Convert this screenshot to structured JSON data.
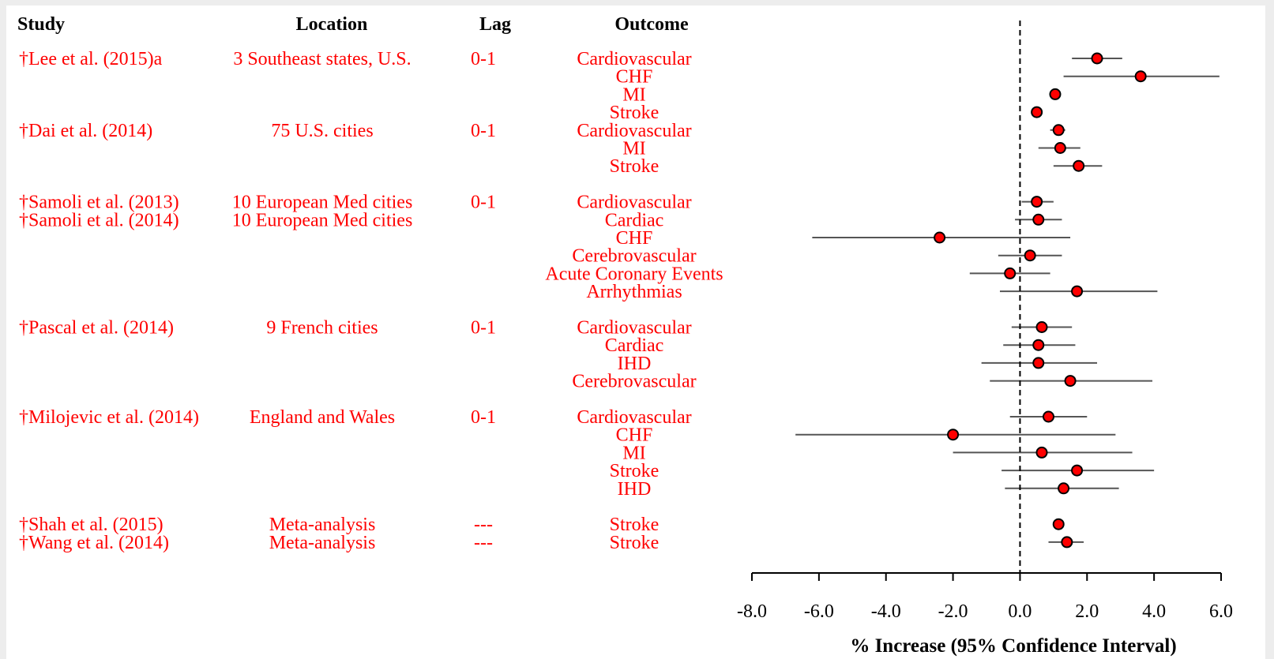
{
  "table": {
    "headers": {
      "study": "Study",
      "location": "Location",
      "lag": "Lag",
      "outcome": "Outcome"
    },
    "studies": [
      {
        "study": "†Lee et al. (2015)a",
        "location": "3 Southeast states, U.S.",
        "lag": "0-1",
        "row": 0
      },
      {
        "study": "†Dai et al. (2014)",
        "location": "75 U.S. cities",
        "lag": "0-1",
        "row": 4
      },
      {
        "study": "†Samoli et al. (2013)",
        "location": "10 European Med cities",
        "lag": "0-1",
        "row": 8
      },
      {
        "study": "†Samoli et al. (2014)",
        "location": "10 European Med cities",
        "lag": "",
        "row": 9
      },
      {
        "study": "†Pascal et al. (2014)",
        "location": "9 French cities",
        "lag": "0-1",
        "row": 15
      },
      {
        "study": "†Milojevic et al. (2014)",
        "location": "England and Wales",
        "lag": "0-1",
        "row": 20
      },
      {
        "study": "†Shah et al. (2015)",
        "location": "Meta-analysis",
        "lag": "---",
        "row": 26
      },
      {
        "study": "†Wang et al. (2014)",
        "location": "Meta-analysis",
        "lag": "---",
        "row": 27
      }
    ]
  },
  "chart_data": {
    "type": "forest",
    "xlabel": "% Increase (95% Confidence Interval)",
    "xlim": [
      -8.0,
      6.0
    ],
    "xticks": [
      "-8.0",
      "-6.0",
      "-4.0",
      "-2.0",
      "0.0",
      "2.0",
      "4.0",
      "6.0"
    ],
    "xtick_values": [
      -8,
      -6,
      -4,
      -2,
      0,
      2,
      4,
      6
    ],
    "reference_line": 0,
    "colors": {
      "text": "#ff0000",
      "marker_fill": "#ff0000",
      "ci_line": "#555555",
      "axis": "#000000"
    },
    "rows": [
      {
        "row": 0,
        "outcome": "Cardiovascular",
        "est": 2.3,
        "lo": 1.55,
        "hi": 3.05
      },
      {
        "row": 1,
        "outcome": "CHF",
        "est": 3.6,
        "lo": 1.3,
        "hi": 5.95
      },
      {
        "row": 2,
        "outcome": "MI",
        "est": 1.05,
        "lo": 0.95,
        "hi": 1.15
      },
      {
        "row": 3,
        "outcome": "Stroke",
        "est": 0.5,
        "lo": 0.4,
        "hi": 0.6
      },
      {
        "row": 4,
        "outcome": "Cardiovascular",
        "est": 1.15,
        "lo": 0.9,
        "hi": 1.35
      },
      {
        "row": 5,
        "outcome": "MI",
        "est": 1.2,
        "lo": 0.55,
        "hi": 1.8
      },
      {
        "row": 6,
        "outcome": "Stroke",
        "est": 1.75,
        "lo": 1.0,
        "hi": 2.45
      },
      {
        "row": 8,
        "outcome": "Cardiovascular",
        "est": 0.5,
        "lo": 0.05,
        "hi": 1.0
      },
      {
        "row": 9,
        "outcome": "Cardiac",
        "est": 0.55,
        "lo": -0.15,
        "hi": 1.25
      },
      {
        "row": 10,
        "outcome": "CHF",
        "est": -2.4,
        "lo": -6.2,
        "hi": 1.5
      },
      {
        "row": 11,
        "outcome": "Cerebrovascular",
        "est": 0.3,
        "lo": -0.65,
        "hi": 1.25
      },
      {
        "row": 12,
        "outcome": "Acute Coronary Events",
        "est": -0.3,
        "lo": -1.5,
        "hi": 0.9
      },
      {
        "row": 13,
        "outcome": "Arrhythmias",
        "est": 1.7,
        "lo": -0.6,
        "hi": 4.1
      },
      {
        "row": 15,
        "outcome": "Cardiovascular",
        "est": 0.65,
        "lo": -0.25,
        "hi": 1.55
      },
      {
        "row": 16,
        "outcome": "Cardiac",
        "est": 0.55,
        "lo": -0.5,
        "hi": 1.65
      },
      {
        "row": 17,
        "outcome": "IHD",
        "est": 0.55,
        "lo": -1.15,
        "hi": 2.3
      },
      {
        "row": 18,
        "outcome": "Cerebrovascular",
        "est": 1.5,
        "lo": -0.9,
        "hi": 3.95
      },
      {
        "row": 20,
        "outcome": "Cardiovascular",
        "est": 0.85,
        "lo": -0.3,
        "hi": 2.0
      },
      {
        "row": 21,
        "outcome": "CHF",
        "est": -2.0,
        "lo": -6.7,
        "hi": 2.85
      },
      {
        "row": 22,
        "outcome": "MI",
        "est": 0.65,
        "lo": -2.0,
        "hi": 3.35
      },
      {
        "row": 23,
        "outcome": "Stroke",
        "est": 1.7,
        "lo": -0.55,
        "hi": 4.0
      },
      {
        "row": 24,
        "outcome": "IHD",
        "est": 1.3,
        "lo": -0.45,
        "hi": 2.95
      },
      {
        "row": 26,
        "outcome": "Stroke",
        "est": 1.15,
        "lo": 1.05,
        "hi": 1.25
      },
      {
        "row": 27,
        "outcome": "Stroke",
        "est": 1.4,
        "lo": 0.85,
        "hi": 1.9
      }
    ]
  }
}
